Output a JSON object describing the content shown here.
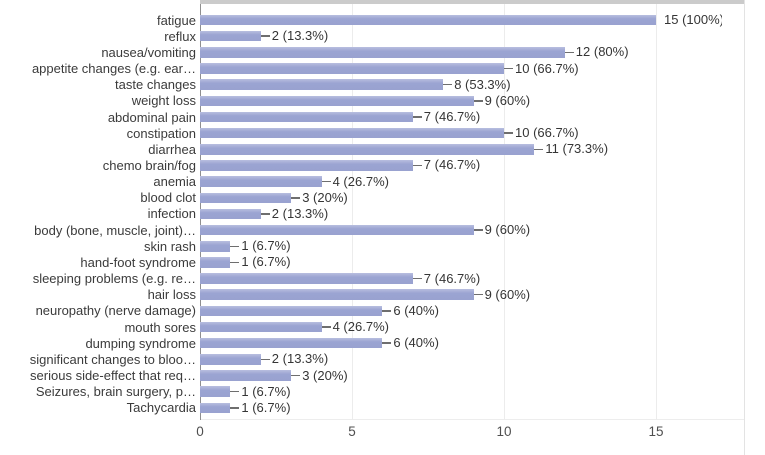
{
  "chart_data": {
    "type": "bar",
    "orientation": "horizontal",
    "title": "",
    "xlabel": "",
    "ylabel": "",
    "xlim": [
      0,
      17.9
    ],
    "grid": true,
    "bar_color": "#9ba4d2",
    "axis_line_color": "#8f8f8f",
    "tick_values": [
      0,
      5,
      10,
      15
    ],
    "tick_labels": [
      "0",
      "5",
      "10",
      "15"
    ],
    "categories": [
      "fatigue",
      "reflux",
      "nausea/vomiting",
      "appetite changes (e.g. ear…",
      "taste changes",
      "weight loss",
      "abdominal pain",
      "constipation",
      "diarrhea",
      "chemo brain/fog",
      "anemia",
      "blood clot",
      "infection",
      "body (bone, muscle, joint)…",
      "skin rash",
      "hand-foot syndrome",
      "sleeping problems (e.g. re…",
      "hair loss",
      "neuropathy (nerve damage)",
      "mouth sores",
      "dumping syndrome",
      "significant changes to bloo…",
      "serious side-effect that req…",
      "Seizures, brain surgery, p…",
      "Tachycardia"
    ],
    "values": [
      15,
      2,
      12,
      10,
      8,
      9,
      7,
      10,
      11,
      7,
      4,
      3,
      2,
      9,
      1,
      1,
      7,
      9,
      6,
      4,
      6,
      2,
      3,
      1,
      1
    ],
    "annotations": [
      "15 (100%)",
      "2 (13.3%)",
      "12 (80%)",
      "10 (66.7%)",
      "8 (53.3%)",
      "9 (60%)",
      "7 (46.7%)",
      "10 (66.7%)",
      "11 (73.3%)",
      "7 (46.7%)",
      "4 (26.7%)",
      "3 (20%)",
      "2 (13.3%)",
      "9 (60%)",
      "1 (6.7%)",
      "1 (6.7%)",
      "7 (46.7%)",
      "9 (60%)",
      "6 (40%)",
      "4 (26.7%)",
      "6 (40%)",
      "2 (13.3%)",
      "3 (20%)",
      "1 (6.7%)",
      "1 (6.7%)"
    ]
  }
}
